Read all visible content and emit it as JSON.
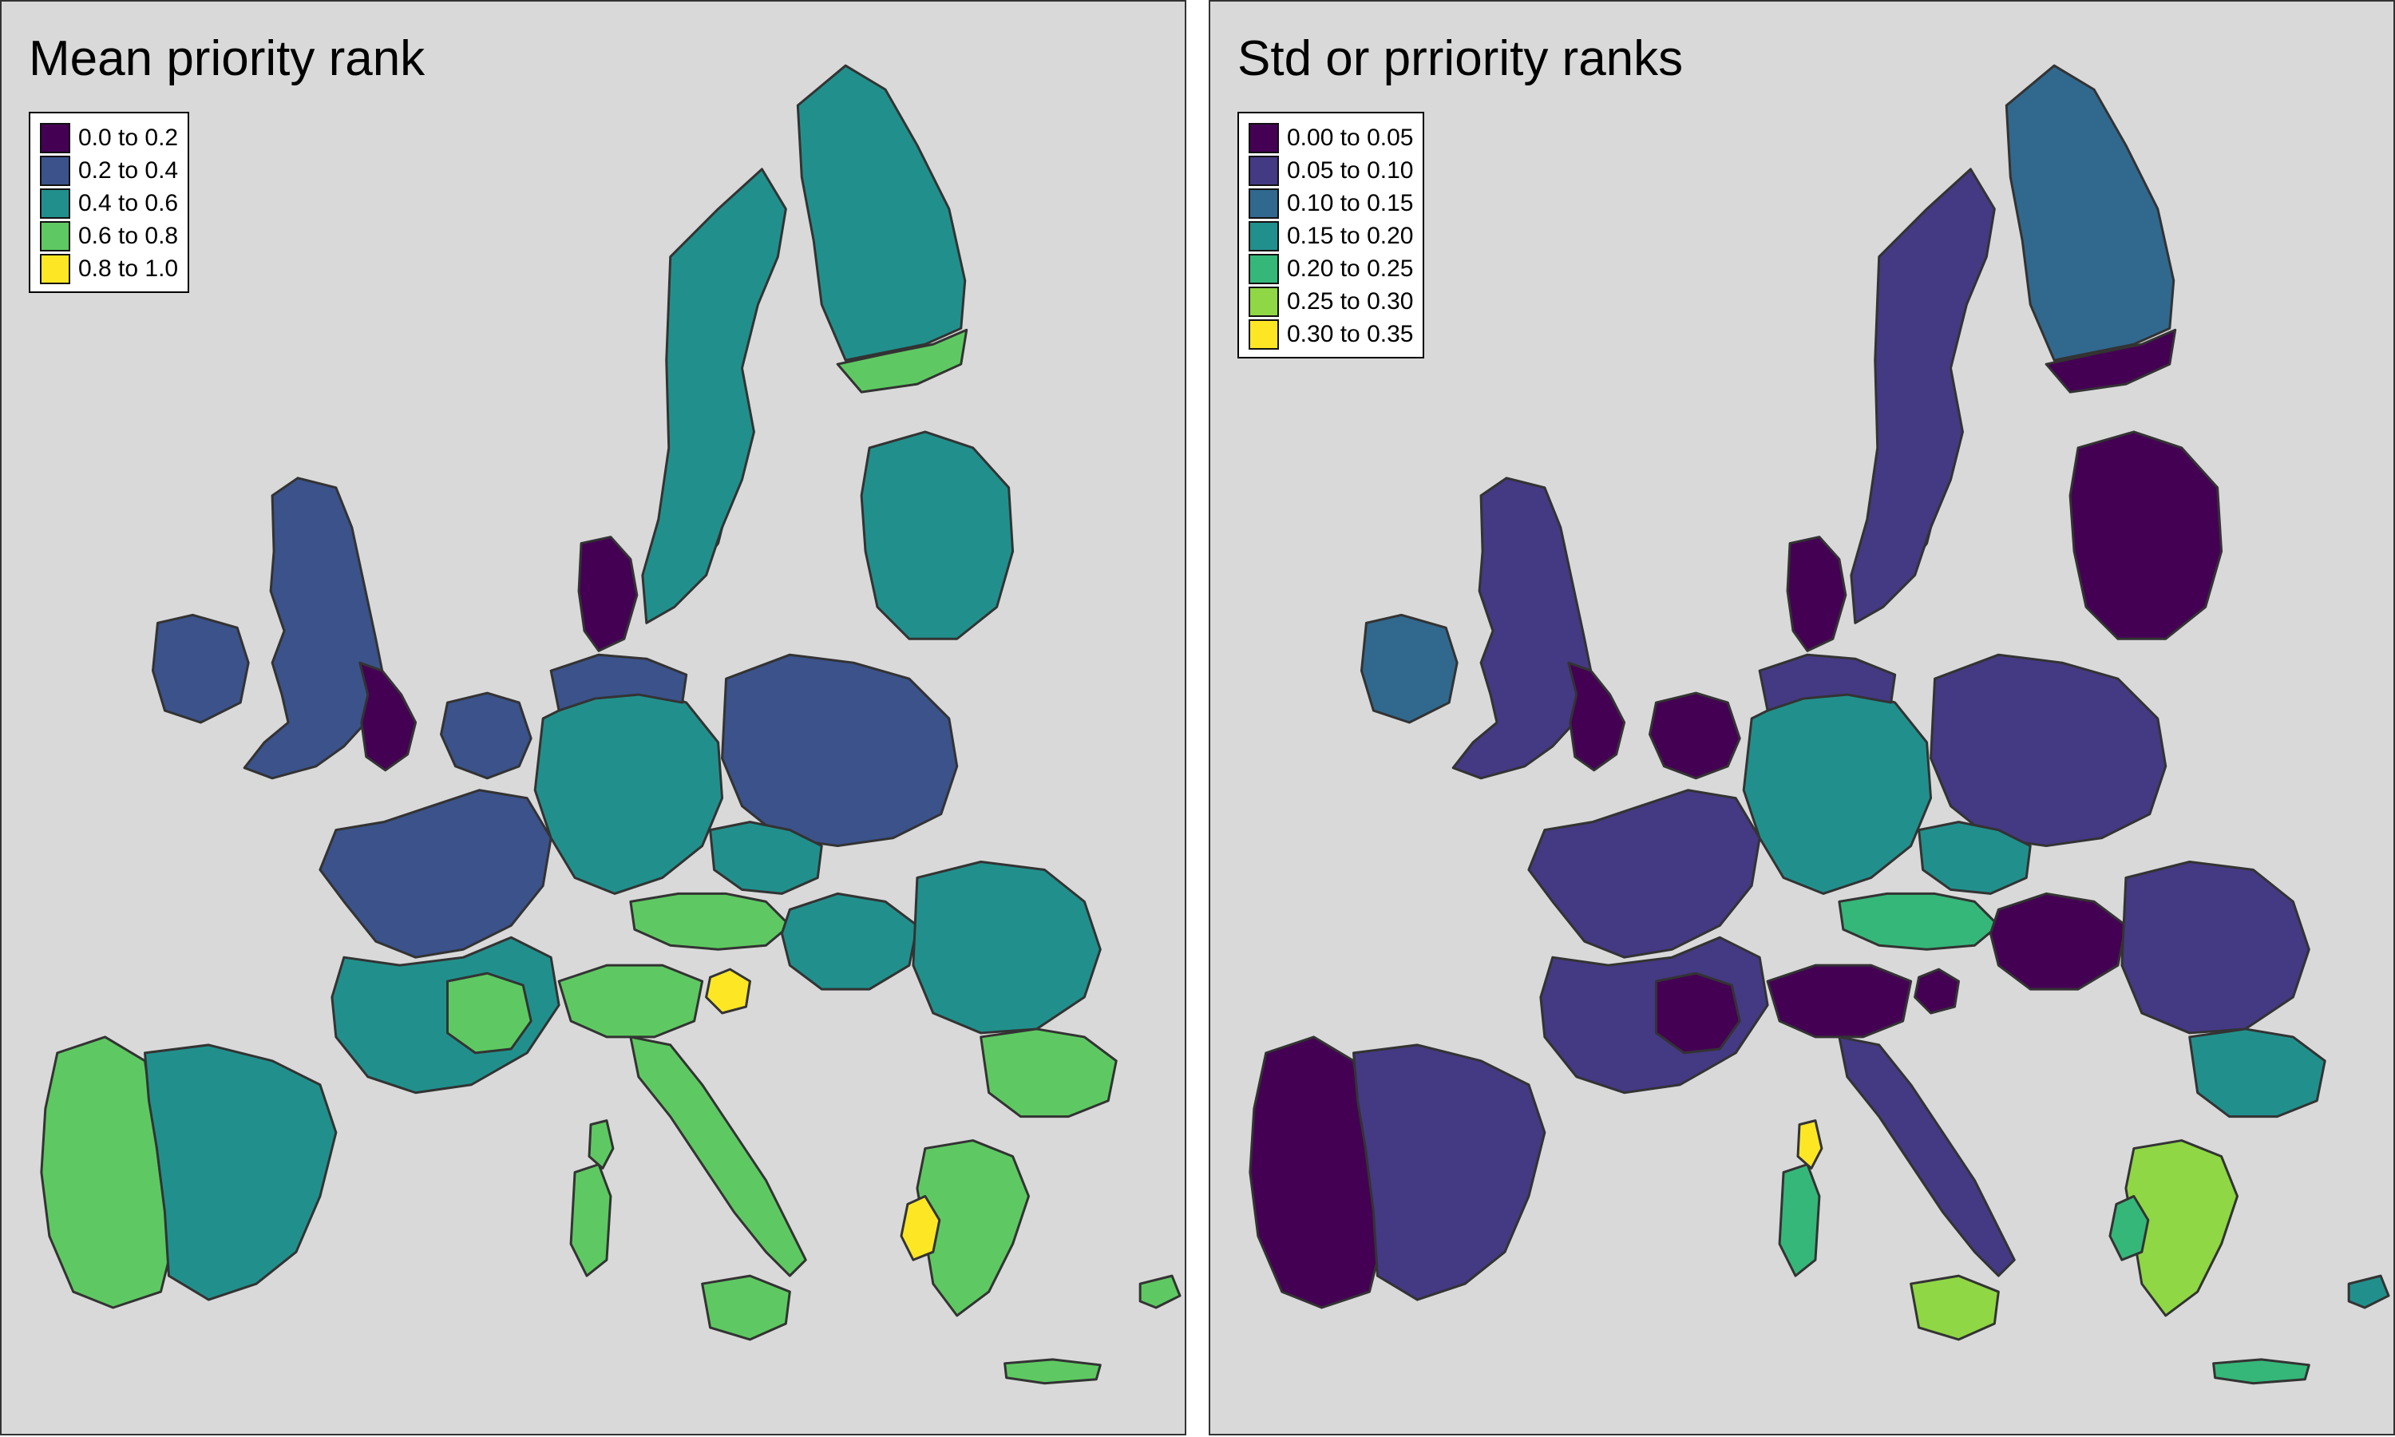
{
  "panels": [
    {
      "id": "mean",
      "title": "Mean priority rank",
      "legend": [
        {
          "label": "0.0 to 0.2",
          "color": "#440154"
        },
        {
          "label": "0.2 to 0.4",
          "color": "#3b528b"
        },
        {
          "label": "0.4 to 0.6",
          "color": "#21908c"
        },
        {
          "label": "0.6 to 0.8",
          "color": "#5ec962"
        },
        {
          "label": "0.8 to 1.0",
          "color": "#fde725"
        }
      ],
      "region_classes": {
        "ireland": 1,
        "great_britain": 1,
        "england_east": 0,
        "benelux": 1,
        "denmark": 0,
        "scandinavia_west": 1,
        "sweden": 2,
        "finland": 2,
        "finland_south": 3,
        "baltics": 2,
        "france_north": 1,
        "france_south": 2,
        "germany": 2,
        "germany_north": 1,
        "poland": 1,
        "czechia": 2,
        "austria": 3,
        "hungary": 2,
        "romania": 2,
        "bulgaria": 3,
        "iberia_west": 3,
        "iberia_east": 2,
        "italy_north": 3,
        "italy_south": 3,
        "greece": 3,
        "greece_west": 4,
        "slovenia": 4,
        "alps_west": 3,
        "sardinia": 3,
        "corsica": 3,
        "sicily": 3,
        "crete": 3,
        "cyprus": 3
      }
    },
    {
      "id": "std",
      "title": "Std or prriority ranks",
      "legend": [
        {
          "label": "0.00 to 0.05",
          "color": "#440154"
        },
        {
          "label": "0.05 to 0.10",
          "color": "#443983"
        },
        {
          "label": "0.10 to 0.15",
          "color": "#31688e"
        },
        {
          "label": "0.15 to 0.20",
          "color": "#21908c"
        },
        {
          "label": "0.20 to 0.25",
          "color": "#35b779"
        },
        {
          "label": "0.25 to 0.30",
          "color": "#8fd744"
        },
        {
          "label": "0.30 to 0.35",
          "color": "#fde725"
        }
      ],
      "region_classes": {
        "ireland": 2,
        "great_britain": 1,
        "england_east": 0,
        "benelux": 0,
        "denmark": 0,
        "scandinavia_west": 2,
        "sweden": 1,
        "finland": 2,
        "finland_south": 0,
        "baltics": 0,
        "france_north": 1,
        "france_south": 1,
        "germany": 3,
        "germany_north": 1,
        "poland": 1,
        "czechia": 3,
        "austria": 4,
        "hungary": 0,
        "romania": 1,
        "bulgaria": 3,
        "iberia_west": 0,
        "iberia_east": 1,
        "italy_north": 0,
        "italy_south": 1,
        "greece": 5,
        "greece_west": 4,
        "slovenia": 0,
        "alps_west": 0,
        "sardinia": 4,
        "corsica": 6,
        "sicily": 5,
        "crete": 4,
        "cyprus": 3
      }
    }
  ]
}
